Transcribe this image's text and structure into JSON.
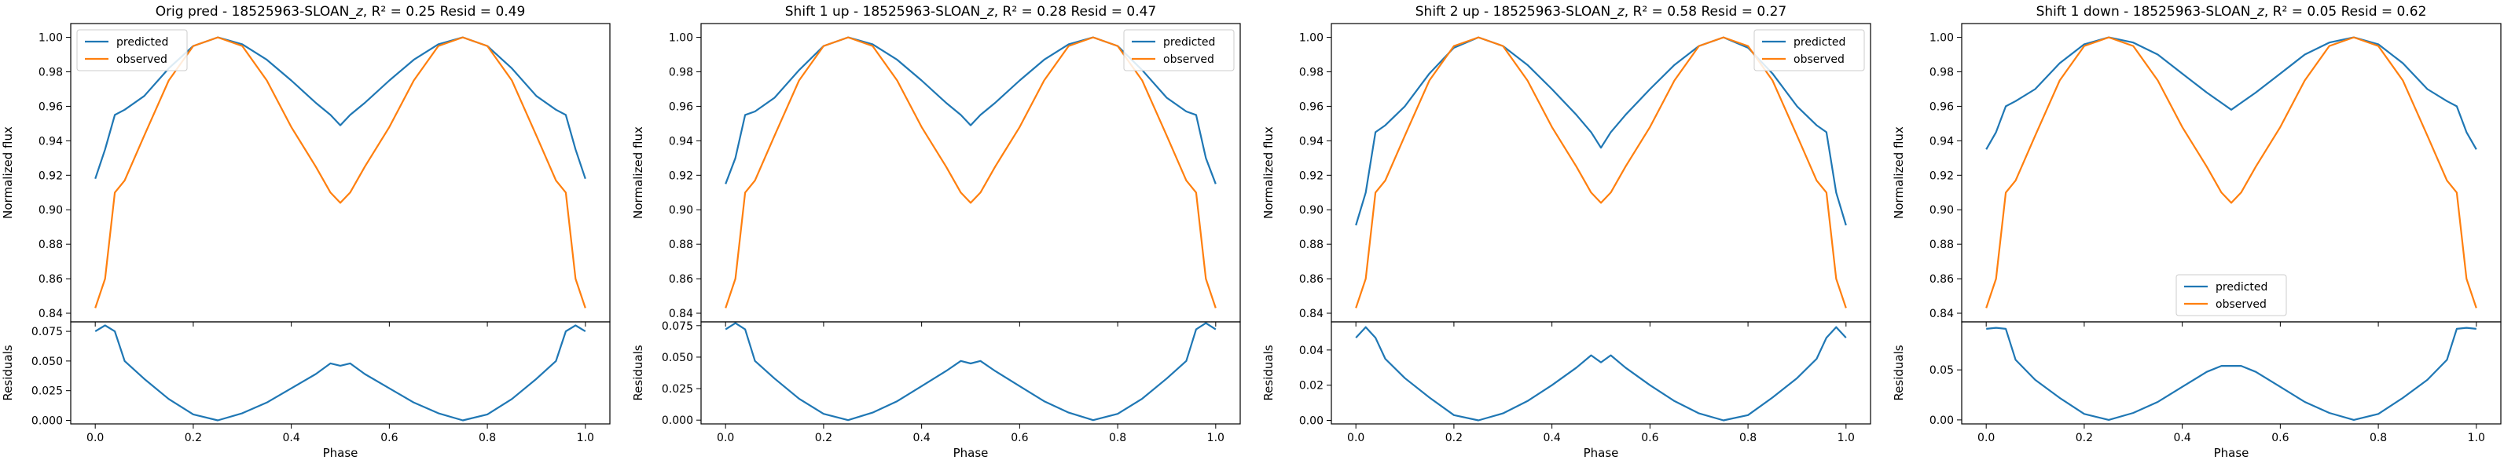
{
  "figure": {
    "panels": [
      {
        "title_prefix": "Orig pred - 18525963-SLOAN_",
        "title_suffix": ", R² = 0.25 Resid = 0.49"
      },
      {
        "title_prefix": "Shift 1 up - 18525963-SLOAN_",
        "title_suffix": ", R² = 0.28 Resid = 0.47"
      },
      {
        "title_prefix": "Shift 2 up - 18525963-SLOAN_",
        "title_suffix": ", R² = 0.58 Resid = 0.27"
      },
      {
        "title_prefix": "Shift 1 down - 18525963-SLOAN_",
        "title_suffix": ", R² = 0.05 Resid = 0.62"
      }
    ],
    "band_letter": "z",
    "colors": {
      "predicted": "#1f77b4",
      "observed": "#ff7f0e",
      "axes": "#000000"
    }
  },
  "chart_data": [
    {
      "type": "line",
      "title": "Orig pred - 18525963-SLOAN_z, R² = 0.25 Resid = 0.49",
      "xlabel": "Phase",
      "ylabel": "Normalized flux",
      "resid_ylabel": "Residuals",
      "xlim": [
        -0.05,
        1.05
      ],
      "ylim": [
        0.835,
        1.008
      ],
      "resid_ylim": [
        -0.003,
        0.083
      ],
      "xticks": [
        "0.0",
        "0.2",
        "0.4",
        "0.6",
        "0.8",
        "1.0"
      ],
      "yticks": [
        "0.84",
        "0.86",
        "0.88",
        "0.90",
        "0.92",
        "0.94",
        "0.96",
        "0.98",
        "1.00"
      ],
      "resid_yticks": [
        "0.000",
        "0.025",
        "0.050",
        "0.075"
      ],
      "legend": "top-left",
      "series_names": [
        "predicted",
        "observed"
      ],
      "x": [
        0.0,
        0.02,
        0.04,
        0.06,
        0.1,
        0.15,
        0.2,
        0.25,
        0.3,
        0.35,
        0.4,
        0.45,
        0.48,
        0.5,
        0.52,
        0.55,
        0.6,
        0.65,
        0.7,
        0.75,
        0.8,
        0.85,
        0.9,
        0.94,
        0.96,
        0.98,
        1.0
      ],
      "series": [
        {
          "name": "predicted",
          "values": [
            0.918,
            0.935,
            0.955,
            0.958,
            0.966,
            0.982,
            0.995,
            1.0,
            0.996,
            0.987,
            0.975,
            0.962,
            0.955,
            0.949,
            0.955,
            0.962,
            0.975,
            0.987,
            0.996,
            1.0,
            0.995,
            0.982,
            0.966,
            0.958,
            0.955,
            0.935,
            0.918
          ]
        },
        {
          "name": "observed",
          "values": [
            0.843,
            0.86,
            0.91,
            0.917,
            0.943,
            0.975,
            0.995,
            1.0,
            0.995,
            0.975,
            0.948,
            0.925,
            0.91,
            0.904,
            0.91,
            0.925,
            0.948,
            0.975,
            0.995,
            1.0,
            0.995,
            0.975,
            0.943,
            0.917,
            0.91,
            0.86,
            0.843
          ]
        }
      ],
      "residuals": [
        0.075,
        0.08,
        0.075,
        0.05,
        0.035,
        0.018,
        0.005,
        0.0,
        0.006,
        0.015,
        0.027,
        0.039,
        0.048,
        0.046,
        0.048,
        0.039,
        0.027,
        0.015,
        0.006,
        0.0,
        0.005,
        0.018,
        0.035,
        0.05,
        0.075,
        0.08,
        0.075
      ]
    },
    {
      "type": "line",
      "title": "Shift 1 up - 18525963-SLOAN_z, R² = 0.28 Resid = 0.47",
      "xlabel": "Phase",
      "ylabel": "Normalized flux",
      "resid_ylabel": "Residuals",
      "xlim": [
        -0.05,
        1.05
      ],
      "ylim": [
        0.835,
        1.008
      ],
      "resid_ylim": [
        -0.003,
        0.078
      ],
      "xticks": [
        "0.0",
        "0.2",
        "0.4",
        "0.6",
        "0.8",
        "1.0"
      ],
      "yticks": [
        "0.84",
        "0.86",
        "0.88",
        "0.90",
        "0.92",
        "0.94",
        "0.96",
        "0.98",
        "1.00"
      ],
      "resid_yticks": [
        "0.000",
        "0.025",
        "0.050",
        "0.075"
      ],
      "legend": "top-right",
      "series_names": [
        "predicted",
        "observed"
      ],
      "x": [
        0.0,
        0.02,
        0.04,
        0.06,
        0.1,
        0.15,
        0.2,
        0.25,
        0.3,
        0.35,
        0.4,
        0.45,
        0.48,
        0.5,
        0.52,
        0.55,
        0.6,
        0.65,
        0.7,
        0.75,
        0.8,
        0.85,
        0.9,
        0.94,
        0.96,
        0.98,
        1.0
      ],
      "series": [
        {
          "name": "predicted",
          "values": [
            0.915,
            0.93,
            0.955,
            0.957,
            0.965,
            0.981,
            0.995,
            1.0,
            0.996,
            0.987,
            0.975,
            0.962,
            0.955,
            0.949,
            0.955,
            0.962,
            0.975,
            0.987,
            0.996,
            1.0,
            0.995,
            0.981,
            0.965,
            0.957,
            0.955,
            0.93,
            0.915
          ]
        },
        {
          "name": "observed",
          "values": [
            0.843,
            0.86,
            0.91,
            0.917,
            0.943,
            0.975,
            0.995,
            1.0,
            0.995,
            0.975,
            0.948,
            0.925,
            0.91,
            0.904,
            0.91,
            0.925,
            0.948,
            0.975,
            0.995,
            1.0,
            0.995,
            0.975,
            0.943,
            0.917,
            0.91,
            0.86,
            0.843
          ]
        }
      ],
      "residuals": [
        0.072,
        0.077,
        0.072,
        0.047,
        0.033,
        0.017,
        0.005,
        0.0,
        0.006,
        0.015,
        0.027,
        0.039,
        0.047,
        0.045,
        0.047,
        0.039,
        0.027,
        0.015,
        0.006,
        0.0,
        0.005,
        0.017,
        0.033,
        0.047,
        0.072,
        0.077,
        0.072
      ]
    },
    {
      "type": "line",
      "title": "Shift 2 up - 18525963-SLOAN_z, R² = 0.58 Resid = 0.27",
      "xlabel": "Phase",
      "ylabel": "Normalized flux",
      "resid_ylabel": "Residuals",
      "xlim": [
        -0.05,
        1.05
      ],
      "ylim": [
        0.835,
        1.008
      ],
      "resid_ylim": [
        -0.002,
        0.056
      ],
      "xticks": [
        "0.0",
        "0.2",
        "0.4",
        "0.6",
        "0.8",
        "1.0"
      ],
      "yticks": [
        "0.84",
        "0.86",
        "0.88",
        "0.90",
        "0.92",
        "0.94",
        "0.96",
        "0.98",
        "1.00"
      ],
      "resid_yticks": [
        "0.00",
        "0.02",
        "0.04"
      ],
      "legend": "top-right",
      "series_names": [
        "predicted",
        "observed"
      ],
      "x": [
        0.0,
        0.02,
        0.04,
        0.06,
        0.1,
        0.15,
        0.2,
        0.25,
        0.3,
        0.35,
        0.4,
        0.45,
        0.48,
        0.5,
        0.52,
        0.55,
        0.6,
        0.65,
        0.7,
        0.75,
        0.8,
        0.85,
        0.9,
        0.94,
        0.96,
        0.98,
        1.0
      ],
      "series": [
        {
          "name": "predicted",
          "values": [
            0.891,
            0.91,
            0.945,
            0.949,
            0.96,
            0.979,
            0.994,
            1.0,
            0.995,
            0.984,
            0.97,
            0.955,
            0.945,
            0.936,
            0.945,
            0.955,
            0.97,
            0.984,
            0.995,
            1.0,
            0.994,
            0.979,
            0.96,
            0.949,
            0.945,
            0.91,
            0.891
          ]
        },
        {
          "name": "observed",
          "values": [
            0.843,
            0.86,
            0.91,
            0.917,
            0.943,
            0.975,
            0.995,
            1.0,
            0.995,
            0.975,
            0.948,
            0.925,
            0.91,
            0.904,
            0.91,
            0.925,
            0.948,
            0.975,
            0.995,
            1.0,
            0.995,
            0.975,
            0.943,
            0.917,
            0.91,
            0.86,
            0.843
          ]
        }
      ],
      "residuals": [
        0.047,
        0.053,
        0.047,
        0.035,
        0.024,
        0.013,
        0.003,
        0.0,
        0.004,
        0.011,
        0.02,
        0.03,
        0.037,
        0.033,
        0.037,
        0.03,
        0.02,
        0.011,
        0.004,
        0.0,
        0.003,
        0.013,
        0.024,
        0.035,
        0.047,
        0.053,
        0.047
      ]
    },
    {
      "type": "line",
      "title": "Shift 1 down - 18525963-SLOAN_z, R² = 0.05 Resid = 0.62",
      "xlabel": "Phase",
      "ylabel": "Normalized flux",
      "resid_ylabel": "Residuals",
      "xlim": [
        -0.05,
        1.05
      ],
      "ylim": [
        0.835,
        1.008
      ],
      "resid_ylim": [
        -0.004,
        0.098
      ],
      "xticks": [
        "0.0",
        "0.2",
        "0.4",
        "0.6",
        "0.8",
        "1.0"
      ],
      "yticks": [
        "0.84",
        "0.86",
        "0.88",
        "0.90",
        "0.92",
        "0.94",
        "0.96",
        "0.98",
        "1.00"
      ],
      "resid_yticks": [
        "0.00",
        "0.05"
      ],
      "legend": "lower-center",
      "series_names": [
        "predicted",
        "observed"
      ],
      "x": [
        0.0,
        0.02,
        0.04,
        0.06,
        0.1,
        0.15,
        0.2,
        0.25,
        0.3,
        0.35,
        0.4,
        0.45,
        0.48,
        0.5,
        0.52,
        0.55,
        0.6,
        0.65,
        0.7,
        0.75,
        0.8,
        0.85,
        0.9,
        0.94,
        0.96,
        0.98,
        1.0
      ],
      "series": [
        {
          "name": "predicted",
          "values": [
            0.935,
            0.945,
            0.96,
            0.963,
            0.97,
            0.985,
            0.996,
            1.0,
            0.997,
            0.99,
            0.979,
            0.968,
            0.962,
            0.958,
            0.962,
            0.968,
            0.979,
            0.99,
            0.997,
            1.0,
            0.996,
            0.985,
            0.97,
            0.963,
            0.96,
            0.945,
            0.935
          ]
        },
        {
          "name": "observed",
          "values": [
            0.843,
            0.86,
            0.91,
            0.917,
            0.943,
            0.975,
            0.995,
            1.0,
            0.995,
            0.975,
            0.948,
            0.925,
            0.91,
            0.904,
            0.91,
            0.925,
            0.948,
            0.975,
            0.995,
            1.0,
            0.995,
            0.975,
            0.943,
            0.917,
            0.91,
            0.86,
            0.843
          ]
        }
      ],
      "residuals": [
        0.091,
        0.092,
        0.091,
        0.06,
        0.04,
        0.022,
        0.006,
        0.0,
        0.007,
        0.018,
        0.033,
        0.048,
        0.054,
        0.054,
        0.054,
        0.048,
        0.033,
        0.018,
        0.007,
        0.0,
        0.006,
        0.022,
        0.04,
        0.06,
        0.091,
        0.092,
        0.091
      ]
    }
  ]
}
